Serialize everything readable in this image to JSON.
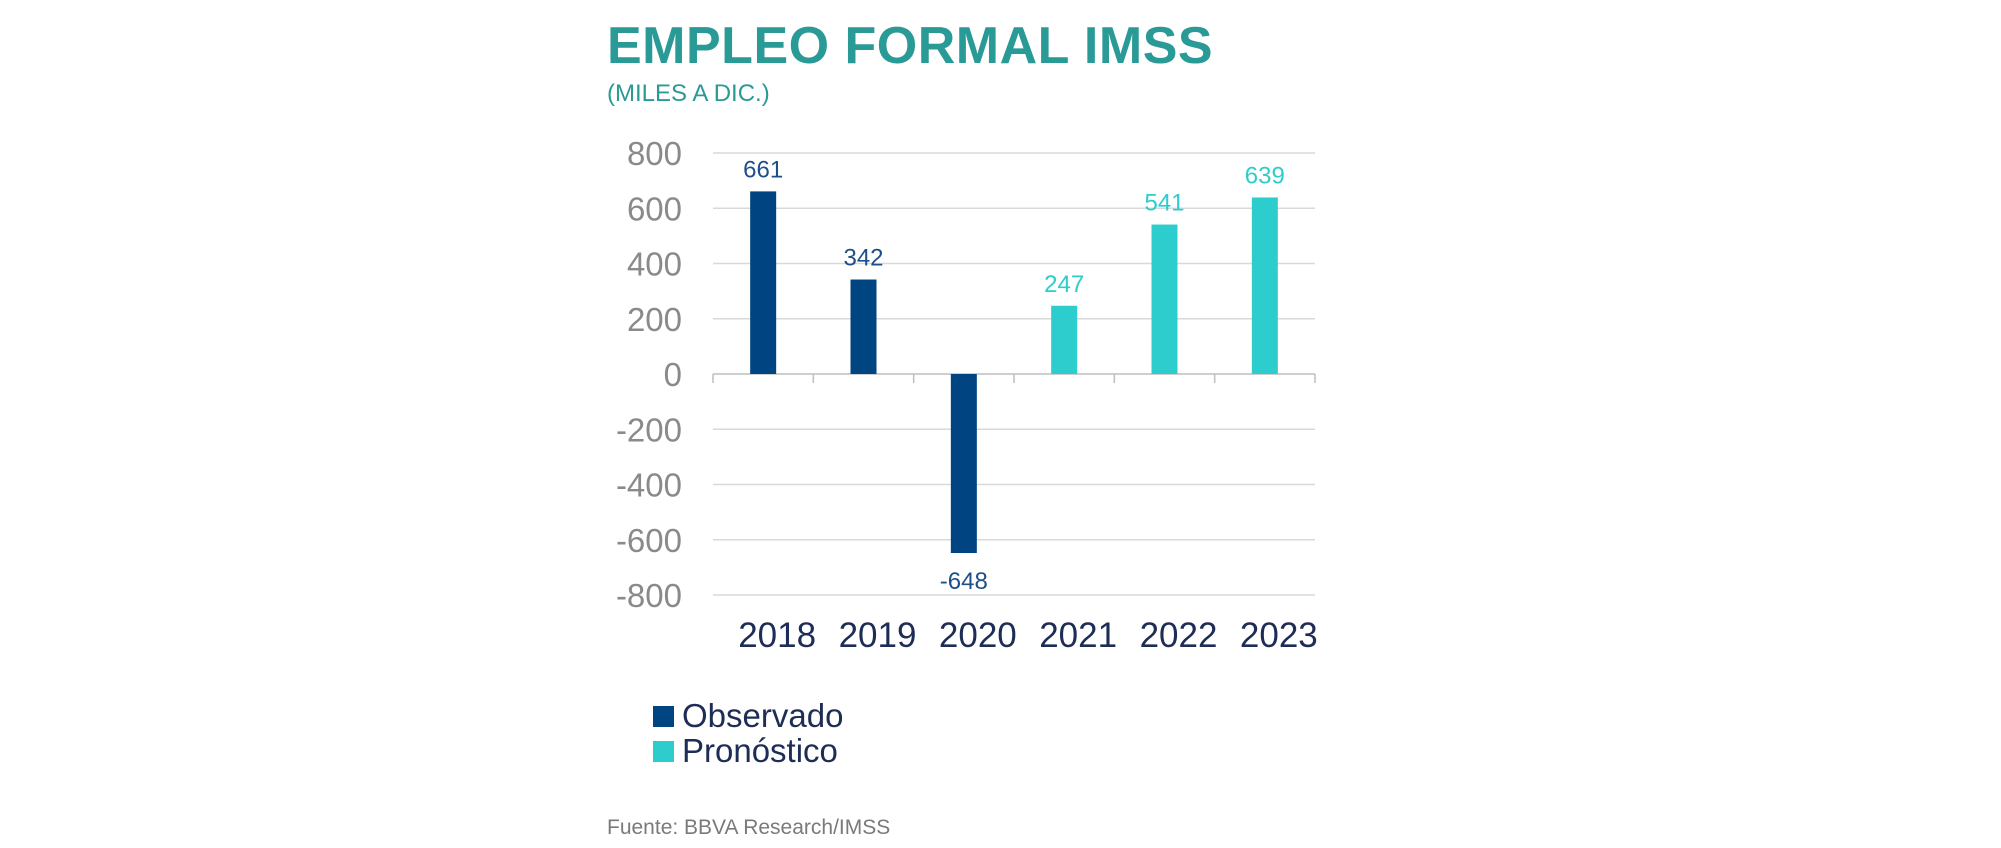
{
  "title": "EMPLEO FORMAL IMSS",
  "subtitle": "(MILES A DIC.)",
  "source": "Fuente: BBVA Research/IMSS",
  "colors": {
    "observado": "#004481",
    "pronostico": "#2dcccd"
  },
  "chart_data": {
    "type": "bar",
    "categories": [
      "2018",
      "2019",
      "2020",
      "2021",
      "2022",
      "2023"
    ],
    "series": [
      {
        "name": "Observado",
        "values": [
          661,
          342,
          -648,
          null,
          null,
          null
        ]
      },
      {
        "name": "Pronóstico",
        "values": [
          null,
          null,
          null,
          247,
          541,
          639
        ]
      }
    ],
    "data_labels": [
      "661",
      "342",
      "-648",
      "247",
      "541",
      "639"
    ],
    "ylim": [
      -800,
      800
    ],
    "yticks": [
      800,
      600,
      400,
      200,
      0,
      -200,
      -400,
      -600,
      -800
    ],
    "ytick_labels": [
      "800",
      "600",
      "400",
      "200",
      "0",
      "-200",
      "-400",
      "-600",
      "-800"
    ],
    "grid": true,
    "legend_position": "bottom-left"
  }
}
